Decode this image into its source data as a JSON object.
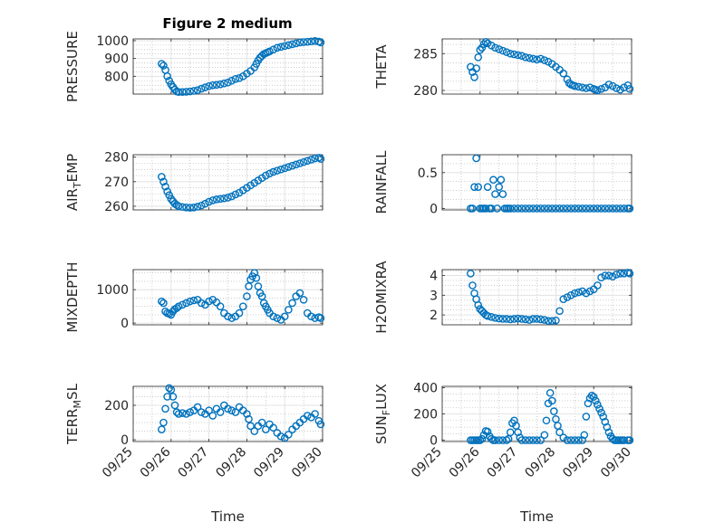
{
  "figure_title": "Figure 2 medium",
  "colors": {
    "marker": "#0072BD",
    "axis": "#262626",
    "grid": "#DFDFDF",
    "minor_grid": "#B0B0B0"
  },
  "chart_data": [
    {
      "type": "scatter",
      "id": "pressure",
      "title": "Figure 2 medium",
      "ylabel": "PRESSURE",
      "ylabel_sub": "",
      "ylabel_after": "",
      "xlabel": "",
      "xlim": [
        0,
        5
      ],
      "ylim": [
        700,
        1010
      ],
      "yticks": [
        800,
        900,
        1000
      ],
      "yticklabels": [
        "800",
        "900",
        "1000"
      ],
      "xticks": [
        0,
        1,
        2,
        3,
        4,
        5
      ],
      "xticklabels": [],
      "grid": true,
      "x": [
        0.75,
        0.8,
        0.85,
        0.9,
        0.95,
        1,
        1.05,
        1.1,
        1.15,
        1.2,
        1.3,
        1.4,
        1.5,
        1.6,
        1.7,
        1.8,
        1.9,
        2,
        2.1,
        2.2,
        2.3,
        2.4,
        2.5,
        2.6,
        2.7,
        2.8,
        2.9,
        3,
        3.1,
        3.2,
        3.25,
        3.3,
        3.35,
        3.4,
        3.45,
        3.5,
        3.55,
        3.6,
        3.7,
        3.8,
        3.9,
        4,
        4.1,
        4.2,
        4.3,
        4.4,
        4.5,
        4.6,
        4.7,
        4.8,
        4.9,
        4.95
      ],
      "y": [
        870,
        860,
        835,
        800,
        775,
        755,
        740,
        725,
        715,
        712,
        712,
        713,
        715,
        718,
        722,
        730,
        738,
        745,
        750,
        752,
        755,
        760,
        765,
        775,
        785,
        790,
        800,
        815,
        830,
        850,
        870,
        890,
        905,
        915,
        925,
        930,
        935,
        940,
        950,
        960,
        965,
        970,
        975,
        980,
        985,
        990,
        992,
        994,
        996,
        998,
        995,
        990
      ]
    },
    {
      "type": "scatter",
      "id": "theta",
      "title": "",
      "ylabel": "THETA",
      "ylabel_sub": "",
      "ylabel_after": "",
      "xlabel": "",
      "xlim": [
        0,
        5
      ],
      "ylim": [
        279.5,
        287
      ],
      "yticks": [
        280,
        285
      ],
      "yticklabels": [
        "280",
        "285"
      ],
      "xticks": [
        0,
        1,
        2,
        3,
        4,
        5
      ],
      "xticklabels": [],
      "grid": true,
      "x": [
        0.75,
        0.8,
        0.85,
        0.9,
        0.95,
        1,
        1.05,
        1.1,
        1.15,
        1.2,
        1.3,
        1.4,
        1.5,
        1.6,
        1.7,
        1.8,
        1.9,
        2,
        2.1,
        2.2,
        2.3,
        2.4,
        2.5,
        2.6,
        2.7,
        2.8,
        2.9,
        3,
        3.1,
        3.2,
        3.3,
        3.35,
        3.4,
        3.45,
        3.5,
        3.6,
        3.7,
        3.8,
        3.9,
        4,
        4.05,
        4.1,
        4.2,
        4.3,
        4.4,
        4.5,
        4.6,
        4.7,
        4.8,
        4.9,
        4.95
      ],
      "y": [
        283.2,
        282.5,
        281.8,
        283.0,
        284.5,
        285.5,
        285.8,
        286.3,
        286.6,
        286.4,
        286.1,
        285.8,
        285.6,
        285.4,
        285.2,
        285.0,
        284.9,
        284.8,
        284.7,
        284.5,
        284.4,
        284.3,
        284.2,
        284.3,
        284.1,
        283.9,
        283.6,
        283.2,
        282.8,
        282.3,
        281.5,
        281.0,
        280.8,
        280.7,
        280.6,
        280.5,
        280.4,
        280.3,
        280.4,
        280.2,
        280.1,
        280.0,
        280.2,
        280.4,
        280.8,
        280.6,
        280.3,
        280.1,
        280.4,
        280.7,
        280.2
      ]
    },
    {
      "type": "scatter",
      "id": "air_temp",
      "title": "",
      "ylabel": "AIR",
      "ylabel_sub": "T",
      "ylabel_after": "EMP",
      "xlabel": "",
      "xlim": [
        0,
        5
      ],
      "ylim": [
        258.5,
        281
      ],
      "yticks": [
        260,
        270,
        280
      ],
      "yticklabels": [
        "260",
        "270",
        "280"
      ],
      "xticks": [
        0,
        1,
        2,
        3,
        4,
        5
      ],
      "xticklabels": [],
      "grid": true,
      "x": [
        0.75,
        0.8,
        0.85,
        0.9,
        0.95,
        1,
        1.05,
        1.1,
        1.15,
        1.2,
        1.3,
        1.4,
        1.5,
        1.6,
        1.7,
        1.8,
        1.9,
        2,
        2.1,
        2.2,
        2.3,
        2.4,
        2.5,
        2.6,
        2.7,
        2.8,
        2.9,
        3,
        3.1,
        3.2,
        3.3,
        3.4,
        3.5,
        3.6,
        3.7,
        3.8,
        3.9,
        4,
        4.1,
        4.2,
        4.3,
        4.4,
        4.5,
        4.6,
        4.7,
        4.8,
        4.9,
        4.95
      ],
      "y": [
        272,
        270,
        268,
        266,
        264.5,
        263,
        262,
        261,
        260.5,
        260,
        259.7,
        259.5,
        259.4,
        259.5,
        259.8,
        260.3,
        261,
        261.8,
        262.4,
        262.8,
        263,
        263.2,
        263.5,
        264,
        264.8,
        265.5,
        266.5,
        267.5,
        268.5,
        269.5,
        270.5,
        271.5,
        272.5,
        273.3,
        274,
        274.5,
        275,
        275.5,
        276,
        276.5,
        277,
        277.5,
        278,
        278.5,
        279,
        279.5,
        279.8,
        279.3
      ]
    },
    {
      "type": "scatter",
      "id": "rainfall",
      "title": "",
      "ylabel": "RAINFALL",
      "ylabel_sub": "",
      "ylabel_after": "",
      "xlabel": "",
      "xlim": [
        0,
        5
      ],
      "ylim": [
        -0.02,
        0.75
      ],
      "yticks": [
        0,
        0.5
      ],
      "yticklabels": [
        "0",
        "0.5"
      ],
      "xticks": [
        0,
        1,
        2,
        3,
        4,
        5
      ],
      "xticklabels": [],
      "grid": true,
      "x": [
        0.75,
        0.8,
        0.85,
        0.9,
        0.95,
        1,
        1.05,
        1.1,
        1.15,
        1.2,
        1.25,
        1.3,
        1.35,
        1.4,
        1.45,
        1.5,
        1.55,
        1.6,
        1.65,
        1.7,
        1.75,
        1.8,
        1.9,
        2,
        2.1,
        2.2,
        2.3,
        2.4,
        2.5,
        2.6,
        2.7,
        2.8,
        2.9,
        3,
        3.1,
        3.2,
        3.3,
        3.4,
        3.5,
        3.6,
        3.7,
        3.8,
        3.9,
        4,
        4.1,
        4.2,
        4.3,
        4.4,
        4.5,
        4.6,
        4.7,
        4.8,
        4.9,
        4.95
      ],
      "y": [
        0,
        0,
        0.3,
        0.7,
        0.3,
        0,
        0,
        0,
        0,
        0.3,
        0,
        0,
        0.4,
        0.2,
        0,
        0.3,
        0.4,
        0.2,
        0,
        0,
        0,
        0,
        0,
        0,
        0,
        0,
        0,
        0,
        0,
        0,
        0,
        0,
        0,
        0,
        0,
        0,
        0,
        0,
        0,
        0,
        0,
        0,
        0,
        0,
        0,
        0,
        0,
        0,
        0,
        0,
        0,
        0,
        0,
        0
      ]
    },
    {
      "type": "scatter",
      "id": "mixdepth",
      "title": "",
      "ylabel": "MIXDEPTH",
      "ylabel_sub": "",
      "ylabel_after": "",
      "xlabel": "",
      "xlim": [
        0,
        5
      ],
      "ylim": [
        -50,
        1600
      ],
      "yticks": [
        0,
        1000
      ],
      "yticklabels": [
        "0",
        "1000"
      ],
      "xticks": [
        0,
        1,
        2,
        3,
        4,
        5
      ],
      "xticklabels": [],
      "grid": true,
      "x": [
        0.75,
        0.8,
        0.85,
        0.9,
        0.95,
        1,
        1.05,
        1.1,
        1.15,
        1.2,
        1.3,
        1.4,
        1.5,
        1.6,
        1.7,
        1.8,
        1.9,
        2,
        2.1,
        2.2,
        2.3,
        2.4,
        2.5,
        2.6,
        2.7,
        2.8,
        2.9,
        3,
        3.05,
        3.1,
        3.15,
        3.2,
        3.25,
        3.3,
        3.35,
        3.4,
        3.45,
        3.5,
        3.55,
        3.6,
        3.7,
        3.8,
        3.9,
        4,
        4.1,
        4.2,
        4.3,
        4.4,
        4.5,
        4.6,
        4.7,
        4.8,
        4.9,
        4.95
      ],
      "y": [
        650,
        600,
        350,
        300,
        280,
        250,
        350,
        420,
        450,
        500,
        550,
        600,
        650,
        680,
        700,
        600,
        550,
        650,
        700,
        620,
        500,
        300,
        200,
        150,
        200,
        300,
        500,
        800,
        1100,
        1300,
        1400,
        1500,
        1350,
        1100,
        900,
        800,
        600,
        500,
        400,
        300,
        200,
        150,
        100,
        200,
        400,
        600,
        800,
        900,
        700,
        300,
        200,
        150,
        180,
        150
      ]
    },
    {
      "type": "scatter",
      "id": "h2omixra",
      "title": "",
      "ylabel": "H2OMIXRA",
      "ylabel_sub": "",
      "ylabel_after": "",
      "xlabel": "",
      "xlim": [
        0,
        5
      ],
      "ylim": [
        1.5,
        4.3
      ],
      "yticks": [
        2,
        3,
        4
      ],
      "yticklabels": [
        "2",
        "3",
        "4"
      ],
      "xticks": [
        0,
        1,
        2,
        3,
        4,
        5
      ],
      "xticklabels": [],
      "grid": true,
      "x": [
        0.75,
        0.8,
        0.85,
        0.9,
        0.95,
        1,
        1.05,
        1.1,
        1.15,
        1.2,
        1.3,
        1.4,
        1.5,
        1.6,
        1.7,
        1.8,
        1.9,
        2,
        2.1,
        2.2,
        2.3,
        2.4,
        2.5,
        2.6,
        2.7,
        2.8,
        2.9,
        3,
        3.1,
        3.2,
        3.3,
        3.4,
        3.5,
        3.6,
        3.7,
        3.8,
        3.9,
        4,
        4.1,
        4.2,
        4.3,
        4.4,
        4.5,
        4.6,
        4.7,
        4.8,
        4.9,
        4.95
      ],
      "y": [
        4.1,
        3.5,
        3.1,
        2.8,
        2.5,
        2.3,
        2.2,
        2.1,
        2.0,
        1.95,
        1.9,
        1.85,
        1.82,
        1.8,
        1.8,
        1.78,
        1.8,
        1.82,
        1.8,
        1.78,
        1.75,
        1.8,
        1.8,
        1.78,
        1.75,
        1.7,
        1.7,
        1.72,
        2.2,
        2.8,
        2.9,
        3.0,
        3.1,
        3.15,
        3.2,
        3.1,
        3.2,
        3.3,
        3.5,
        3.9,
        4.0,
        4.0,
        3.95,
        4.05,
        4.1,
        4.1,
        4.15,
        4.1
      ]
    },
    {
      "type": "scatter",
      "id": "terr_msl",
      "title": "",
      "ylabel": "TERR",
      "ylabel_sub": "M",
      "ylabel_after": "SL",
      "xlabel": "Time",
      "xlim": [
        0,
        5
      ],
      "ylim": [
        -10,
        310
      ],
      "yticks": [
        0,
        200
      ],
      "yticklabels": [
        "0",
        "200"
      ],
      "xticks": [
        0,
        1,
        2,
        3,
        4,
        5
      ],
      "xticklabels": [
        "09/25",
        "09/26",
        "09/27",
        "09/28",
        "09/29",
        "09/30"
      ],
      "grid": true,
      "x": [
        0.75,
        0.8,
        0.85,
        0.9,
        0.95,
        1,
        1.05,
        1.1,
        1.15,
        1.2,
        1.3,
        1.4,
        1.5,
        1.6,
        1.7,
        1.8,
        1.9,
        2,
        2.1,
        2.2,
        2.3,
        2.4,
        2.5,
        2.6,
        2.7,
        2.8,
        2.9,
        3,
        3.05,
        3.1,
        3.2,
        3.3,
        3.4,
        3.5,
        3.6,
        3.7,
        3.8,
        3.9,
        4,
        4.1,
        4.2,
        4.3,
        4.4,
        4.5,
        4.6,
        4.7,
        4.8,
        4.9,
        4.95
      ],
      "y": [
        60,
        100,
        180,
        250,
        300,
        290,
        250,
        200,
        160,
        150,
        155,
        150,
        160,
        170,
        190,
        160,
        150,
        170,
        140,
        180,
        160,
        200,
        180,
        170,
        160,
        190,
        170,
        150,
        120,
        80,
        50,
        80,
        100,
        60,
        90,
        70,
        40,
        20,
        10,
        30,
        60,
        80,
        100,
        120,
        140,
        130,
        150,
        110,
        90
      ]
    },
    {
      "type": "scatter",
      "id": "sun_flux",
      "title": "",
      "ylabel": "SUN",
      "ylabel_sub": "F",
      "ylabel_after": "LUX",
      "xlabel": "Time",
      "xlim": [
        0,
        5
      ],
      "ylim": [
        -10,
        410
      ],
      "yticks": [
        0,
        200,
        400
      ],
      "yticklabels": [
        "0",
        "200",
        "400"
      ],
      "xticks": [
        0,
        1,
        2,
        3,
        4,
        5
      ],
      "xticklabels": [
        "09/25",
        "09/26",
        "09/27",
        "09/28",
        "09/29",
        "09/30"
      ],
      "grid": true,
      "x": [
        0.75,
        0.8,
        0.85,
        0.9,
        0.95,
        1,
        1.05,
        1.1,
        1.15,
        1.2,
        1.25,
        1.3,
        1.35,
        1.4,
        1.5,
        1.6,
        1.7,
        1.75,
        1.8,
        1.85,
        1.9,
        1.95,
        2,
        2.05,
        2.1,
        2.2,
        2.3,
        2.4,
        2.5,
        2.6,
        2.7,
        2.75,
        2.8,
        2.85,
        2.9,
        2.95,
        3,
        3.05,
        3.1,
        3.2,
        3.3,
        3.4,
        3.5,
        3.6,
        3.7,
        3.75,
        3.8,
        3.85,
        3.9,
        3.95,
        4,
        4.05,
        4.1,
        4.15,
        4.2,
        4.25,
        4.3,
        4.35,
        4.4,
        4.45,
        4.5,
        4.55,
        4.6,
        4.65,
        4.7,
        4.75,
        4.8,
        4.9,
        4.95
      ],
      "y": [
        0,
        0,
        0,
        0,
        0,
        0,
        10,
        40,
        70,
        65,
        30,
        10,
        0,
        0,
        0,
        0,
        0,
        10,
        60,
        130,
        150,
        110,
        60,
        20,
        0,
        0,
        0,
        0,
        0,
        0,
        40,
        150,
        280,
        360,
        300,
        220,
        160,
        110,
        60,
        20,
        0,
        0,
        0,
        0,
        0,
        40,
        180,
        280,
        320,
        340,
        330,
        300,
        270,
        240,
        210,
        180,
        140,
        100,
        60,
        30,
        10,
        0,
        0,
        0,
        0,
        0,
        0,
        0,
        0
      ]
    }
  ]
}
